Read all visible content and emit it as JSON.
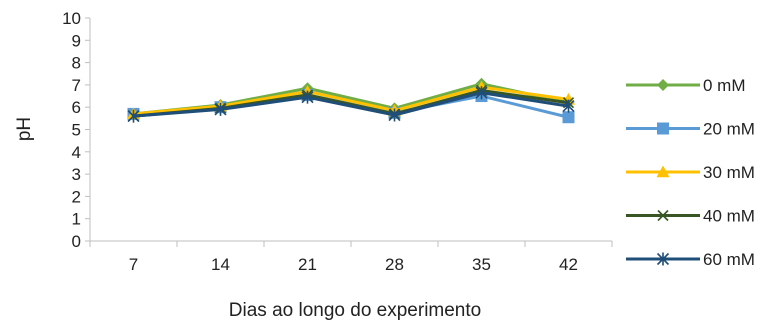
{
  "chart_data": {
    "type": "line",
    "xlabel": "Dias ao longo do experimento",
    "ylabel": "pH",
    "categories": [
      "7",
      "14",
      "21",
      "28",
      "35",
      "42"
    ],
    "ylim": [
      0,
      10
    ],
    "yticks": [
      "0",
      "1",
      "2",
      "3",
      "4",
      "5",
      "6",
      "7",
      "8",
      "9",
      "10"
    ],
    "grid": false,
    "legend_position": "right",
    "series": [
      {
        "name": "0 mM",
        "color": "#70AD47",
        "marker": "diamond",
        "values": [
          5.7,
          6.1,
          6.85,
          5.95,
          7.05,
          6.2
        ]
      },
      {
        "name": "20 mM",
        "color": "#5B9BD5",
        "marker": "square",
        "values": [
          5.7,
          6.0,
          6.55,
          5.75,
          6.5,
          5.55
        ]
      },
      {
        "name": "30 mM",
        "color": "#FFC000",
        "marker": "triangle",
        "values": [
          5.7,
          6.05,
          6.7,
          5.85,
          6.9,
          6.35
        ]
      },
      {
        "name": "40 mM",
        "color": "#375623",
        "marker": "x",
        "values": [
          5.6,
          5.95,
          6.55,
          5.7,
          6.75,
          6.2
        ]
      },
      {
        "name": "60 mM",
        "color": "#1F4E79",
        "marker": "star",
        "values": [
          5.6,
          5.9,
          6.45,
          5.65,
          6.65,
          6.05
        ]
      }
    ]
  }
}
